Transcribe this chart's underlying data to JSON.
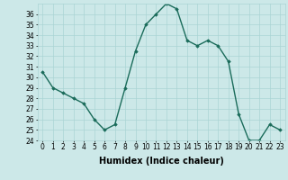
{
  "x": [
    0,
    1,
    2,
    3,
    4,
    5,
    6,
    7,
    8,
    9,
    10,
    11,
    12,
    13,
    14,
    15,
    16,
    17,
    18,
    19,
    20,
    21,
    22,
    23
  ],
  "y": [
    30.5,
    29.0,
    28.5,
    28.0,
    27.5,
    26.0,
    25.0,
    25.5,
    29.0,
    32.5,
    35.0,
    36.0,
    37.0,
    36.5,
    33.5,
    33.0,
    33.5,
    33.0,
    31.5,
    26.5,
    24.0,
    24.0,
    25.5,
    25.0
  ],
  "line_color": "#1a6b5a",
  "marker": "D",
  "marker_size": 1.8,
  "bg_color": "#cce8e8",
  "grid_color": "#aad4d4",
  "xlabel": "Humidex (Indice chaleur)",
  "xlim": [
    -0.5,
    23.5
  ],
  "ylim": [
    24,
    37
  ],
  "yticks": [
    24,
    25,
    26,
    27,
    28,
    29,
    30,
    31,
    32,
    33,
    34,
    35,
    36
  ],
  "xticks": [
    0,
    1,
    2,
    3,
    4,
    5,
    6,
    7,
    8,
    9,
    10,
    11,
    12,
    13,
    14,
    15,
    16,
    17,
    18,
    19,
    20,
    21,
    22,
    23
  ],
  "tick_label_fontsize": 5.5,
  "xlabel_fontsize": 7.0,
  "line_width": 1.0
}
